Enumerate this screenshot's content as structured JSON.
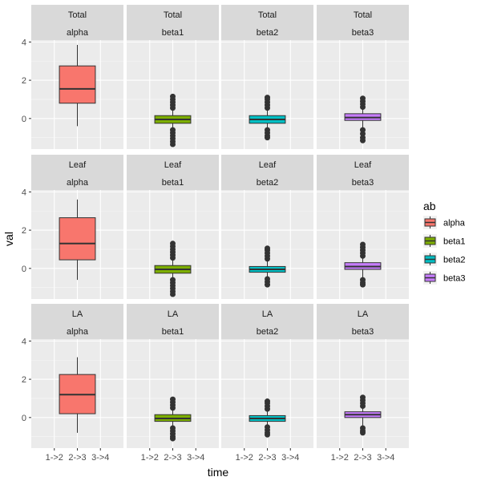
{
  "chart_data": {
    "type": "boxplot",
    "xlabel": "time",
    "ylabel": "val",
    "x_categories": [
      "1->2",
      "2->3",
      "3->4"
    ],
    "yticks": [
      0,
      2,
      4
    ],
    "ylim": [
      -1.6,
      4.1
    ],
    "grid": true,
    "legend": {
      "title": "ab",
      "position": "right",
      "entries": [
        {
          "label": "alpha",
          "color": "#F8766D"
        },
        {
          "label": "beta1",
          "color": "#7CAE00"
        },
        {
          "label": "beta2",
          "color": "#00BFC4"
        },
        {
          "label": "beta3",
          "color": "#C77CFF"
        }
      ]
    },
    "row_strips": [
      "Total",
      "Leaf",
      "LA"
    ],
    "col_strips": [
      "alpha",
      "beta1",
      "beta2",
      "beta3"
    ],
    "panels": [
      [
        {
          "category": "2->3",
          "whisker_low": -0.4,
          "q1": 0.8,
          "median": 1.55,
          "q3": 2.75,
          "whisker_high": 3.85,
          "outliers_low": [],
          "outliers_high": []
        },
        {
          "category": "2->3",
          "whisker_low": -0.55,
          "q1": -0.25,
          "median": -0.05,
          "q3": 0.15,
          "whisker_high": 0.5,
          "outliers_low": [
            -0.6,
            -0.75,
            -0.9,
            -1.05,
            -1.2,
            -1.35
          ],
          "outliers_high": [
            0.55,
            0.7,
            0.85,
            1.0,
            1.15
          ]
        },
        {
          "category": "2->3",
          "whisker_low": -0.5,
          "q1": -0.25,
          "median": -0.05,
          "q3": 0.15,
          "whisker_high": 0.5,
          "outliers_low": [
            -0.6,
            -0.75,
            -0.9,
            -1.0
          ],
          "outliers_high": [
            0.55,
            0.7,
            0.85,
            1.0,
            1.1
          ]
        },
        {
          "category": "2->3",
          "whisker_low": -0.5,
          "q1": -0.1,
          "median": 0.05,
          "q3": 0.25,
          "whisker_high": 0.55,
          "outliers_low": [
            -0.6,
            -0.8,
            -1.0,
            -1.15
          ],
          "outliers_high": [
            0.6,
            0.75,
            0.9,
            1.05
          ]
        }
      ],
      [
        {
          "category": "2->3",
          "whisker_low": -0.6,
          "q1": 0.45,
          "median": 1.3,
          "q3": 2.65,
          "whisker_high": 3.6,
          "outliers_low": [],
          "outliers_high": []
        },
        {
          "category": "2->3",
          "whisker_low": -0.55,
          "q1": -0.25,
          "median": -0.05,
          "q3": 0.15,
          "whisker_high": 0.5,
          "outliers_low": [
            -0.6,
            -0.75,
            -0.9,
            -1.05,
            -1.2,
            -1.35
          ],
          "outliers_high": [
            0.55,
            0.7,
            0.85,
            1.0,
            1.15,
            1.3
          ]
        },
        {
          "category": "2->3",
          "whisker_low": -0.5,
          "q1": -0.2,
          "median": -0.05,
          "q3": 0.1,
          "whisker_high": 0.45,
          "outliers_low": [
            -0.55,
            -0.7,
            -0.85
          ],
          "outliers_high": [
            0.5,
            0.65,
            0.8,
            0.95,
            1.05
          ]
        },
        {
          "category": "2->3",
          "whisker_low": -0.5,
          "q1": -0.05,
          "median": 0.1,
          "q3": 0.3,
          "whisker_high": 0.6,
          "outliers_low": [
            -0.6,
            -0.75,
            -0.85
          ],
          "outliers_high": [
            0.65,
            0.8,
            0.95,
            1.1,
            1.25
          ]
        }
      ],
      [
        {
          "category": "2->3",
          "whisker_low": -0.8,
          "q1": 0.2,
          "median": 1.2,
          "q3": 2.25,
          "whisker_high": 3.15,
          "outliers_low": [],
          "outliers_high": []
        },
        {
          "category": "2->3",
          "whisker_low": -0.5,
          "q1": -0.2,
          "median": -0.05,
          "q3": 0.15,
          "whisker_high": 0.45,
          "outliers_low": [
            -0.55,
            -0.7,
            -0.85,
            -1.0,
            -1.1
          ],
          "outliers_high": [
            0.5,
            0.65,
            0.8,
            0.95
          ]
        },
        {
          "category": "2->3",
          "whisker_low": -0.45,
          "q1": -0.2,
          "median": -0.05,
          "q3": 0.1,
          "whisker_high": 0.4,
          "outliers_low": [
            -0.5,
            -0.65,
            -0.8,
            -0.9
          ],
          "outliers_high": [
            0.45,
            0.6,
            0.75,
            0.85
          ]
        },
        {
          "category": "2->3",
          "whisker_low": -0.45,
          "q1": 0.0,
          "median": 0.15,
          "q3": 0.3,
          "whisker_high": 0.55,
          "outliers_low": [
            -0.55,
            -0.7,
            -0.8
          ],
          "outliers_high": [
            0.6,
            0.75,
            0.9,
            1.05
          ]
        }
      ]
    ]
  }
}
